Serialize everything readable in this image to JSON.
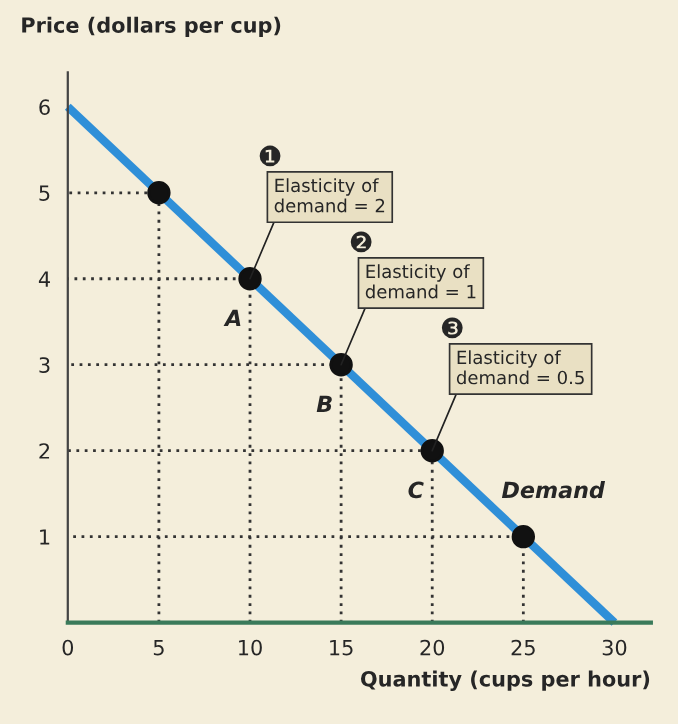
{
  "chart_data": {
    "type": "line",
    "xlabel": "Quantity (cups per hour)",
    "ylabel": "Price (dollars per cup)",
    "xlim": [
      0,
      32
    ],
    "ylim": [
      0,
      6.4
    ],
    "xticks": [
      0,
      5,
      10,
      15,
      20,
      25,
      30
    ],
    "yticks": [
      1,
      2,
      3,
      4,
      5,
      6
    ],
    "grid": false,
    "legend": false,
    "series": [
      {
        "name": "Demand",
        "color": "#2f8fd8",
        "x": [
          0,
          30
        ],
        "values": [
          6,
          0
        ]
      },
      {
        "type": "line",
        "line_style": "dotted",
        "color": "#333333",
        "x": [
          5,
          5,
          0
        ],
        "values": [
          0,
          5,
          5
        ]
      },
      {
        "type": "line",
        "line_style": "dotted",
        "color": "#333333",
        "x": [
          10,
          10,
          0
        ],
        "values": [
          0,
          4,
          4
        ]
      },
      {
        "type": "line",
        "line_style": "dotted",
        "color": "#333333",
        "x": [
          15,
          15,
          0
        ],
        "values": [
          0,
          3,
          3
        ]
      },
      {
        "type": "line",
        "line_style": "dotted",
        "color": "#333333",
        "x": [
          20,
          20,
          0
        ],
        "values": [
          0,
          2,
          2
        ]
      },
      {
        "type": "line",
        "line_style": "dotted",
        "color": "#333333",
        "x": [
          25,
          25,
          0
        ],
        "values": [
          0,
          1,
          1
        ]
      },
      {
        "type": "scatter",
        "color": "#111111",
        "x": [
          5,
          10,
          15,
          20,
          25
        ],
        "values": [
          5,
          4,
          3,
          2,
          1
        ],
        "marker": "circle"
      }
    ],
    "annotations": [
      {
        "text": "A",
        "x": 10,
        "y": 4
      },
      {
        "text": "B",
        "x": 15,
        "y": 3
      },
      {
        "text": "C",
        "x": 20,
        "y": 2
      },
      "❶",
      {
        "text": "Elasticity of\ndemand = 2",
        "x": 10,
        "y": 4
      },
      "❷",
      {
        "text": "Elasticity of\ndemand = 1",
        "x": 15,
        "y": 3
      },
      "❸",
      {
        "text": "Elasticity of\ndemand = 0.5",
        "x": 20,
        "y": 2
      }
    ]
  }
}
